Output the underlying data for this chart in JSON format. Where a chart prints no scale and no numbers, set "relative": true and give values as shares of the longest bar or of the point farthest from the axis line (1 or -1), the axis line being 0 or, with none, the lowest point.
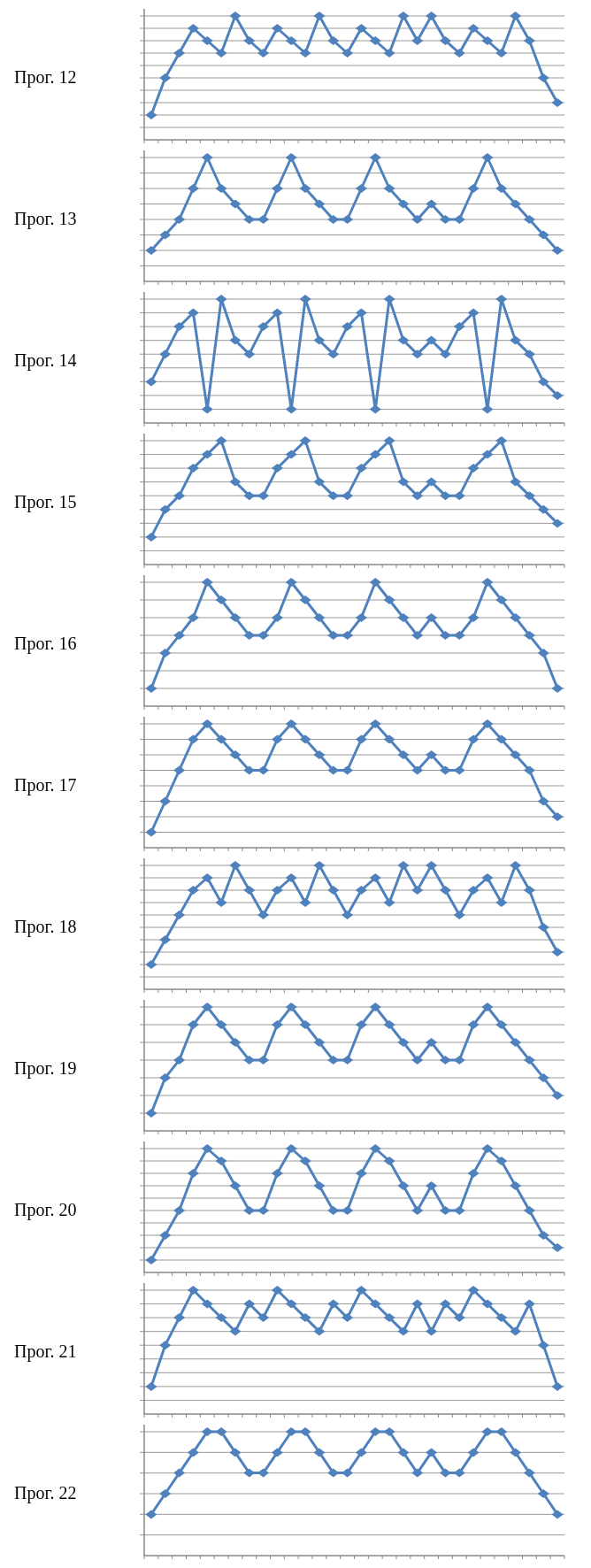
{
  "chart_data": [
    {
      "type": "line",
      "title": "Прог. 12",
      "relative": true,
      "grid": "y",
      "marker": "diamond",
      "categories": [
        null,
        null,
        null,
        null,
        null,
        null,
        null,
        null,
        null,
        null,
        null,
        null,
        null,
        null,
        null,
        null,
        null,
        null,
        null,
        null,
        null,
        null,
        null,
        null,
        null,
        null,
        null,
        null,
        null,
        null
      ],
      "series": [
        {
          "color": "#4f81bd",
          "values": [
            0.2,
            0.5,
            0.7,
            0.9,
            0.8,
            0.7,
            1,
            0.8,
            0.7,
            0.9,
            0.8,
            0.7,
            1,
            0.8,
            0.7,
            0.9,
            0.8,
            0.7,
            1,
            0.8,
            1,
            0.8,
            0.7,
            0.9,
            0.8,
            0.7,
            1,
            0.8,
            0.5,
            0.3
          ]
        }
      ]
    },
    {
      "type": "line",
      "title": "Прог. 13",
      "relative": true,
      "grid": "y",
      "marker": "diamond",
      "categories": [
        null,
        null,
        null,
        null,
        null,
        null,
        null,
        null,
        null,
        null,
        null,
        null,
        null,
        null,
        null,
        null,
        null,
        null,
        null,
        null,
        null,
        null,
        null,
        null,
        null,
        null,
        null,
        null,
        null,
        null
      ],
      "series": [
        {
          "color": "#4f81bd",
          "values": [
            0.25,
            0.375,
            0.5,
            0.75,
            1,
            0.75,
            0.625,
            0.5,
            0.5,
            0.75,
            1,
            0.75,
            0.625,
            0.5,
            0.5,
            0.75,
            1,
            0.75,
            0.625,
            0.5,
            0.625,
            0.5,
            0.5,
            0.75,
            1,
            0.75,
            0.625,
            0.5,
            0.375,
            0.25
          ]
        }
      ]
    },
    {
      "type": "line",
      "title": "Прог. 14",
      "relative": true,
      "grid": "y",
      "marker": "diamond",
      "categories": [
        null,
        null,
        null,
        null,
        null,
        null,
        null,
        null,
        null,
        null,
        null,
        null,
        null,
        null,
        null,
        null,
        null,
        null,
        null,
        null,
        null,
        null,
        null,
        null,
        null,
        null,
        null,
        null,
        null,
        null
      ],
      "series": [
        {
          "color": "#4f81bd",
          "values": [
            0.333,
            0.556,
            0.778,
            0.889,
            0.111,
            1,
            0.667,
            0.556,
            0.778,
            0.889,
            0.111,
            1,
            0.667,
            0.556,
            0.778,
            0.889,
            0.111,
            1,
            0.667,
            0.556,
            0.667,
            0.556,
            0.778,
            0.889,
            0.111,
            1,
            0.667,
            0.556,
            0.333,
            0.222
          ]
        }
      ]
    },
    {
      "type": "line",
      "title": "Прог. 15",
      "relative": true,
      "grid": "y",
      "marker": "diamond",
      "categories": [
        null,
        null,
        null,
        null,
        null,
        null,
        null,
        null,
        null,
        null,
        null,
        null,
        null,
        null,
        null,
        null,
        null,
        null,
        null,
        null,
        null,
        null,
        null,
        null,
        null,
        null,
        null,
        null,
        null,
        null
      ],
      "series": [
        {
          "color": "#4f81bd",
          "values": [
            0.222,
            0.444,
            0.556,
            0.778,
            0.889,
            1,
            0.667,
            0.556,
            0.556,
            0.778,
            0.889,
            1,
            0.667,
            0.556,
            0.556,
            0.778,
            0.889,
            1,
            0.667,
            0.556,
            0.667,
            0.556,
            0.556,
            0.778,
            0.889,
            1,
            0.667,
            0.556,
            0.444,
            0.333
          ]
        }
      ]
    },
    {
      "type": "line",
      "title": "Прог. 16",
      "relative": true,
      "grid": "y",
      "marker": "diamond",
      "categories": [
        null,
        null,
        null,
        null,
        null,
        null,
        null,
        null,
        null,
        null,
        null,
        null,
        null,
        null,
        null,
        null,
        null,
        null,
        null,
        null,
        null,
        null,
        null,
        null,
        null,
        null,
        null,
        null,
        null,
        null
      ],
      "series": [
        {
          "color": "#4f81bd",
          "values": [
            0.143,
            0.429,
            0.571,
            0.714,
            1,
            0.857,
            0.714,
            0.571,
            0.571,
            0.714,
            1,
            0.857,
            0.714,
            0.571,
            0.571,
            0.714,
            1,
            0.857,
            0.714,
            0.571,
            0.714,
            0.571,
            0.571,
            0.714,
            1,
            0.857,
            0.714,
            0.571,
            0.429,
            0.143
          ]
        }
      ]
    },
    {
      "type": "line",
      "title": "Прог. 17",
      "relative": true,
      "grid": "y",
      "marker": "diamond",
      "categories": [
        null,
        null,
        null,
        null,
        null,
        null,
        null,
        null,
        null,
        null,
        null,
        null,
        null,
        null,
        null,
        null,
        null,
        null,
        null,
        null,
        null,
        null,
        null,
        null,
        null,
        null,
        null,
        null,
        null,
        null
      ],
      "series": [
        {
          "color": "#4f81bd",
          "values": [
            0.125,
            0.375,
            0.625,
            0.875,
            1,
            0.875,
            0.75,
            0.625,
            0.625,
            0.875,
            1,
            0.875,
            0.75,
            0.625,
            0.625,
            0.875,
            1,
            0.875,
            0.75,
            0.625,
            0.75,
            0.625,
            0.625,
            0.875,
            1,
            0.875,
            0.75,
            0.625,
            0.375,
            0.25
          ]
        }
      ]
    },
    {
      "type": "line",
      "title": "Прог. 18",
      "relative": true,
      "grid": "y",
      "marker": "diamond",
      "categories": [
        null,
        null,
        null,
        null,
        null,
        null,
        null,
        null,
        null,
        null,
        null,
        null,
        null,
        null,
        null,
        null,
        null,
        null,
        null,
        null,
        null,
        null,
        null,
        null,
        null,
        null,
        null,
        null,
        null,
        null
      ],
      "series": [
        {
          "color": "#4f81bd",
          "values": [
            0.2,
            0.4,
            0.6,
            0.8,
            0.9,
            0.7,
            1,
            0.8,
            0.6,
            0.8,
            0.9,
            0.7,
            1,
            0.8,
            0.6,
            0.8,
            0.9,
            0.7,
            1,
            0.8,
            1,
            0.8,
            0.6,
            0.8,
            0.9,
            0.7,
            1,
            0.8,
            0.5,
            0.3
          ]
        }
      ]
    },
    {
      "type": "line",
      "title": "Прог. 19",
      "relative": true,
      "grid": "y",
      "marker": "diamond",
      "categories": [
        null,
        null,
        null,
        null,
        null,
        null,
        null,
        null,
        null,
        null,
        null,
        null,
        null,
        null,
        null,
        null,
        null,
        null,
        null,
        null,
        null,
        null,
        null,
        null,
        null,
        null,
        null,
        null,
        null,
        null
      ],
      "series": [
        {
          "color": "#4f81bd",
          "values": [
            0.143,
            0.429,
            0.571,
            0.857,
            1,
            0.857,
            0.714,
            0.571,
            0.571,
            0.857,
            1,
            0.857,
            0.714,
            0.571,
            0.571,
            0.857,
            1,
            0.857,
            0.714,
            0.571,
            0.714,
            0.571,
            0.571,
            0.857,
            1,
            0.857,
            0.714,
            0.571,
            0.429,
            0.286
          ]
        }
      ]
    },
    {
      "type": "line",
      "title": "Прог. 20",
      "relative": true,
      "grid": "y",
      "marker": "diamond",
      "categories": [
        null,
        null,
        null,
        null,
        null,
        null,
        null,
        null,
        null,
        null,
        null,
        null,
        null,
        null,
        null,
        null,
        null,
        null,
        null,
        null,
        null,
        null,
        null,
        null,
        null,
        null,
        null,
        null,
        null,
        null
      ],
      "series": [
        {
          "color": "#4f81bd",
          "values": [
            0.1,
            0.3,
            0.5,
            0.8,
            1,
            0.9,
            0.7,
            0.5,
            0.5,
            0.8,
            1,
            0.9,
            0.7,
            0.5,
            0.5,
            0.8,
            1,
            0.9,
            0.7,
            0.5,
            0.7,
            0.5,
            0.5,
            0.8,
            1,
            0.9,
            0.7,
            0.5,
            0.3,
            0.2
          ]
        }
      ]
    },
    {
      "type": "line",
      "title": "Прог. 21",
      "relative": true,
      "grid": "y",
      "marker": "diamond",
      "categories": [
        null,
        null,
        null,
        null,
        null,
        null,
        null,
        null,
        null,
        null,
        null,
        null,
        null,
        null,
        null,
        null,
        null,
        null,
        null,
        null,
        null,
        null,
        null,
        null,
        null,
        null,
        null,
        null,
        null,
        null
      ],
      "series": [
        {
          "color": "#4f81bd",
          "values": [
            0.222,
            0.556,
            0.778,
            1,
            0.889,
            0.778,
            0.667,
            0.889,
            0.778,
            1,
            0.889,
            0.778,
            0.667,
            0.889,
            0.778,
            1,
            0.889,
            0.778,
            0.667,
            0.889,
            0.667,
            0.889,
            0.778,
            1,
            0.889,
            0.778,
            0.667,
            0.889,
            0.556,
            0.222
          ]
        }
      ]
    },
    {
      "type": "line",
      "title": "Прог. 22",
      "relative": true,
      "grid": "y",
      "marker": "diamond",
      "categories": [
        null,
        null,
        null,
        null,
        null,
        null,
        null,
        null,
        null,
        null,
        null,
        null,
        null,
        null,
        null,
        null,
        null,
        null,
        null,
        null,
        null,
        null,
        null,
        null,
        null,
        null,
        null,
        null,
        null,
        null
      ],
      "series": [
        {
          "color": "#4f81bd",
          "values": [
            0.333,
            0.5,
            0.667,
            0.833,
            1,
            1,
            0.833,
            0.667,
            0.667,
            0.833,
            1,
            1,
            0.833,
            0.667,
            0.667,
            0.833,
            1,
            1,
            0.833,
            0.667,
            0.833,
            0.667,
            0.667,
            0.833,
            1,
            1,
            0.833,
            0.667,
            0.5,
            0.333
          ]
        }
      ]
    }
  ]
}
